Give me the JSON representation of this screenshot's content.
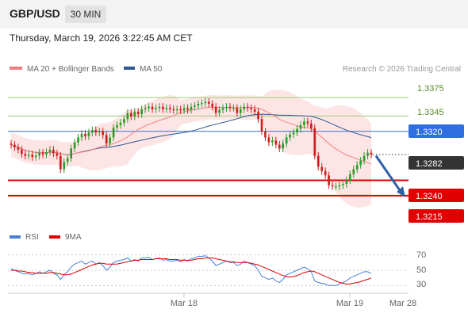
{
  "header": {
    "pair": "GBP/USD",
    "timeframe": "30 MIN"
  },
  "timestamp": "Thursday, March 19, 2026 3:22:45 AM CET",
  "legend": {
    "ma20": "MA 20 + Bollinger Bands",
    "ma50": "MA 50",
    "credit": "Research © 2026 Trading Central"
  },
  "rsi_legend": {
    "rsi": "RSI",
    "ma": "9MA"
  },
  "colors": {
    "ma20": "#f08080",
    "ma50": "#2f5597",
    "bull": "#2e9a2e",
    "bear": "#d01e1e",
    "pivot": "#4a7fd4",
    "support": "#e00000",
    "resistance": "#9acd7a",
    "arrow": "#2f5fa5"
  },
  "chart_data": {
    "type": "candlestick",
    "x_ticks": [
      "Mar 18",
      "Mar 19",
      "Mar 28"
    ],
    "ylim": [
      1.3185,
      1.3405
    ],
    "levels": [
      {
        "value": "1.3375",
        "kind": "resistance"
      },
      {
        "value": "1.3345",
        "kind": "resistance"
      },
      {
        "value": "1.3320",
        "kind": "pivot"
      },
      {
        "value": "1.3282",
        "kind": "current"
      },
      {
        "value": "1.3240",
        "kind": "support"
      },
      {
        "value": "1.3215",
        "kind": "support"
      }
    ],
    "closes": [
      1.3298,
      1.3294,
      1.329,
      1.3283,
      1.328,
      1.3282,
      1.3278,
      1.328,
      1.3285,
      1.3282,
      1.3286,
      1.329,
      1.3284,
      1.328,
      1.3258,
      1.327,
      1.3276,
      1.3292,
      1.3302,
      1.331,
      1.3316,
      1.3312,
      1.3318,
      1.3322,
      1.3318,
      1.332,
      1.3314,
      1.33,
      1.331,
      1.3326,
      1.333,
      1.3334,
      1.334,
      1.335,
      1.3344,
      1.3352,
      1.3348,
      1.3356,
      1.3358,
      1.336,
      1.3356,
      1.3358,
      1.336,
      1.3356,
      1.3358,
      1.3356,
      1.3355,
      1.3356,
      1.3354,
      1.3358,
      1.3355,
      1.336,
      1.3362,
      1.3365,
      1.3366,
      1.3368,
      1.3365,
      1.336,
      1.335,
      1.3355,
      1.3358,
      1.336,
      1.3358,
      1.3358,
      1.335,
      1.3356,
      1.336,
      1.3358,
      1.3356,
      1.3352,
      1.334,
      1.332,
      1.331,
      1.3302,
      1.3305,
      1.3298,
      1.3292,
      1.33,
      1.331,
      1.3315,
      1.3318,
      1.3324,
      1.333,
      1.3336,
      1.3333,
      1.3325,
      1.328,
      1.3262,
      1.3255,
      1.3248,
      1.3232,
      1.323,
      1.323,
      1.3232,
      1.3234,
      1.324,
      1.325,
      1.3258,
      1.3265,
      1.3272,
      1.328,
      1.3285,
      1.3282
    ],
    "opens": [
      1.33,
      1.3298,
      1.3294,
      1.329,
      1.3283,
      1.328,
      1.3282,
      1.3278,
      1.328,
      1.3285,
      1.3282,
      1.3286,
      1.329,
      1.3284,
      1.328,
      1.3258,
      1.327,
      1.3276,
      1.3292,
      1.3302,
      1.331,
      1.3316,
      1.3312,
      1.3318,
      1.3322,
      1.3318,
      1.332,
      1.3314,
      1.33,
      1.331,
      1.3326,
      1.333,
      1.3334,
      1.334,
      1.335,
      1.3344,
      1.3352,
      1.3348,
      1.3356,
      1.3358,
      1.336,
      1.3356,
      1.3358,
      1.336,
      1.3356,
      1.3358,
      1.3356,
      1.3355,
      1.3356,
      1.3354,
      1.3358,
      1.3355,
      1.336,
      1.3362,
      1.3365,
      1.3366,
      1.3368,
      1.3365,
      1.336,
      1.335,
      1.3355,
      1.3358,
      1.336,
      1.3358,
      1.3358,
      1.335,
      1.3356,
      1.336,
      1.3358,
      1.3356,
      1.3352,
      1.334,
      1.332,
      1.331,
      1.3302,
      1.3305,
      1.3298,
      1.3292,
      1.33,
      1.331,
      1.3315,
      1.3318,
      1.3324,
      1.333,
      1.3336,
      1.3333,
      1.3325,
      1.328,
      1.3262,
      1.3255,
      1.3248,
      1.3232,
      1.323,
      1.323,
      1.3232,
      1.3234,
      1.324,
      1.325,
      1.3258,
      1.3265,
      1.3272,
      1.328,
      1.3285
    ],
    "rsi": [
      52,
      50,
      48,
      46,
      45,
      46,
      44,
      46,
      48,
      46,
      48,
      50,
      46,
      44,
      38,
      44,
      48,
      54,
      58,
      60,
      62,
      58,
      60,
      62,
      58,
      60,
      56,
      50,
      54,
      60,
      62,
      63,
      64,
      66,
      62,
      64,
      62,
      66,
      66,
      67,
      64,
      65,
      66,
      63,
      64,
      62,
      62,
      63,
      61,
      64,
      62,
      65,
      66,
      68,
      68,
      69,
      66,
      62,
      56,
      58,
      60,
      62,
      60,
      60,
      56,
      58,
      62,
      60,
      58,
      56,
      50,
      42,
      40,
      38,
      40,
      36,
      34,
      38,
      44,
      46,
      48,
      50,
      52,
      54,
      52,
      48,
      36,
      34,
      33,
      32,
      30,
      30,
      30,
      32,
      34,
      36,
      40,
      42,
      44,
      46,
      48,
      48,
      46
    ],
    "rsi_ma": [
      50,
      50,
      49,
      49,
      48,
      47,
      47,
      46,
      46,
      46,
      46,
      47,
      47,
      46,
      45,
      44,
      44,
      45,
      47,
      49,
      51,
      53,
      55,
      57,
      58,
      59,
      59,
      58,
      58,
      58,
      58,
      59,
      60,
      61,
      62,
      63,
      63,
      64,
      64,
      64,
      64,
      65,
      65,
      65,
      65,
      64,
      64,
      64,
      63,
      63,
      63,
      63,
      64,
      65,
      65,
      66,
      66,
      66,
      65,
      64,
      63,
      62,
      61,
      61,
      60,
      60,
      60,
      60,
      59,
      58,
      57,
      55,
      53,
      51,
      49,
      47,
      45,
      43,
      42,
      41,
      42,
      43,
      45,
      47,
      48,
      49,
      48,
      46,
      44,
      42,
      40,
      38,
      36,
      34,
      33,
      32,
      32,
      33,
      34,
      35,
      37,
      38,
      40
    ],
    "rsi_ticks": [
      "70",
      "50",
      "30"
    ]
  }
}
